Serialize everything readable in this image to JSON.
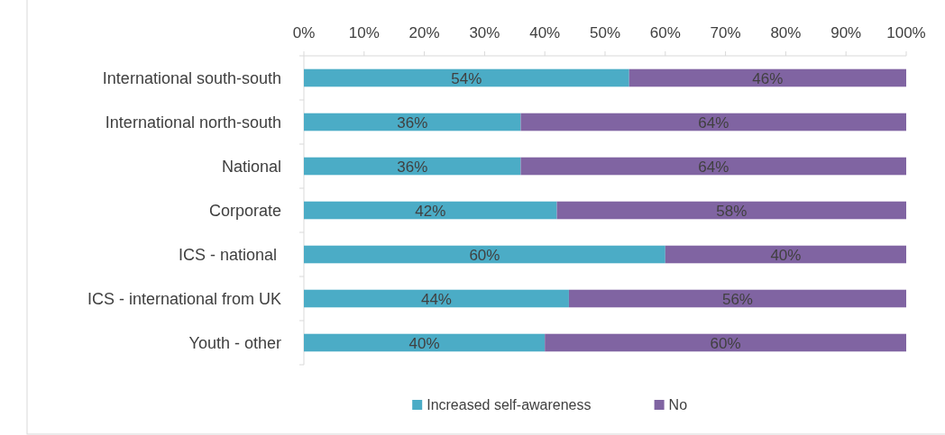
{
  "chart_data": {
    "type": "bar",
    "orientation": "horizontal",
    "stacked": true,
    "categories": [
      "International south-south",
      "International north-south",
      "National",
      "Corporate",
      "ICS - national ",
      "ICS - international from UK",
      "Youth - other"
    ],
    "series": [
      {
        "name": "Increased self-awareness",
        "color": "#4bacc6",
        "values": [
          54,
          36,
          36,
          42,
          60,
          44,
          40
        ],
        "value_labels": [
          "54%",
          "36%",
          "36%",
          "42%",
          "60%",
          "44%",
          "40%"
        ]
      },
      {
        "name": "No",
        "color": "#8064a2",
        "values": [
          46,
          64,
          64,
          58,
          40,
          56,
          60
        ],
        "value_labels": [
          "46%",
          "64%",
          "64%",
          "58%",
          "40%",
          "56%",
          "60%"
        ]
      }
    ],
    "xlim": [
      0,
      100
    ],
    "xticks": [
      {
        "value": 0,
        "label": "0%"
      },
      {
        "value": 10,
        "label": "10%"
      },
      {
        "value": 20,
        "label": "20%"
      },
      {
        "value": 30,
        "label": "30%"
      },
      {
        "value": 40,
        "label": "40%"
      },
      {
        "value": 50,
        "label": "50%"
      },
      {
        "value": 60,
        "label": "60%"
      },
      {
        "value": 70,
        "label": "70%"
      },
      {
        "value": 80,
        "label": "80%"
      },
      {
        "value": 90,
        "label": "90%"
      },
      {
        "value": 100,
        "label": "100%"
      }
    ],
    "legend": "bottom"
  }
}
